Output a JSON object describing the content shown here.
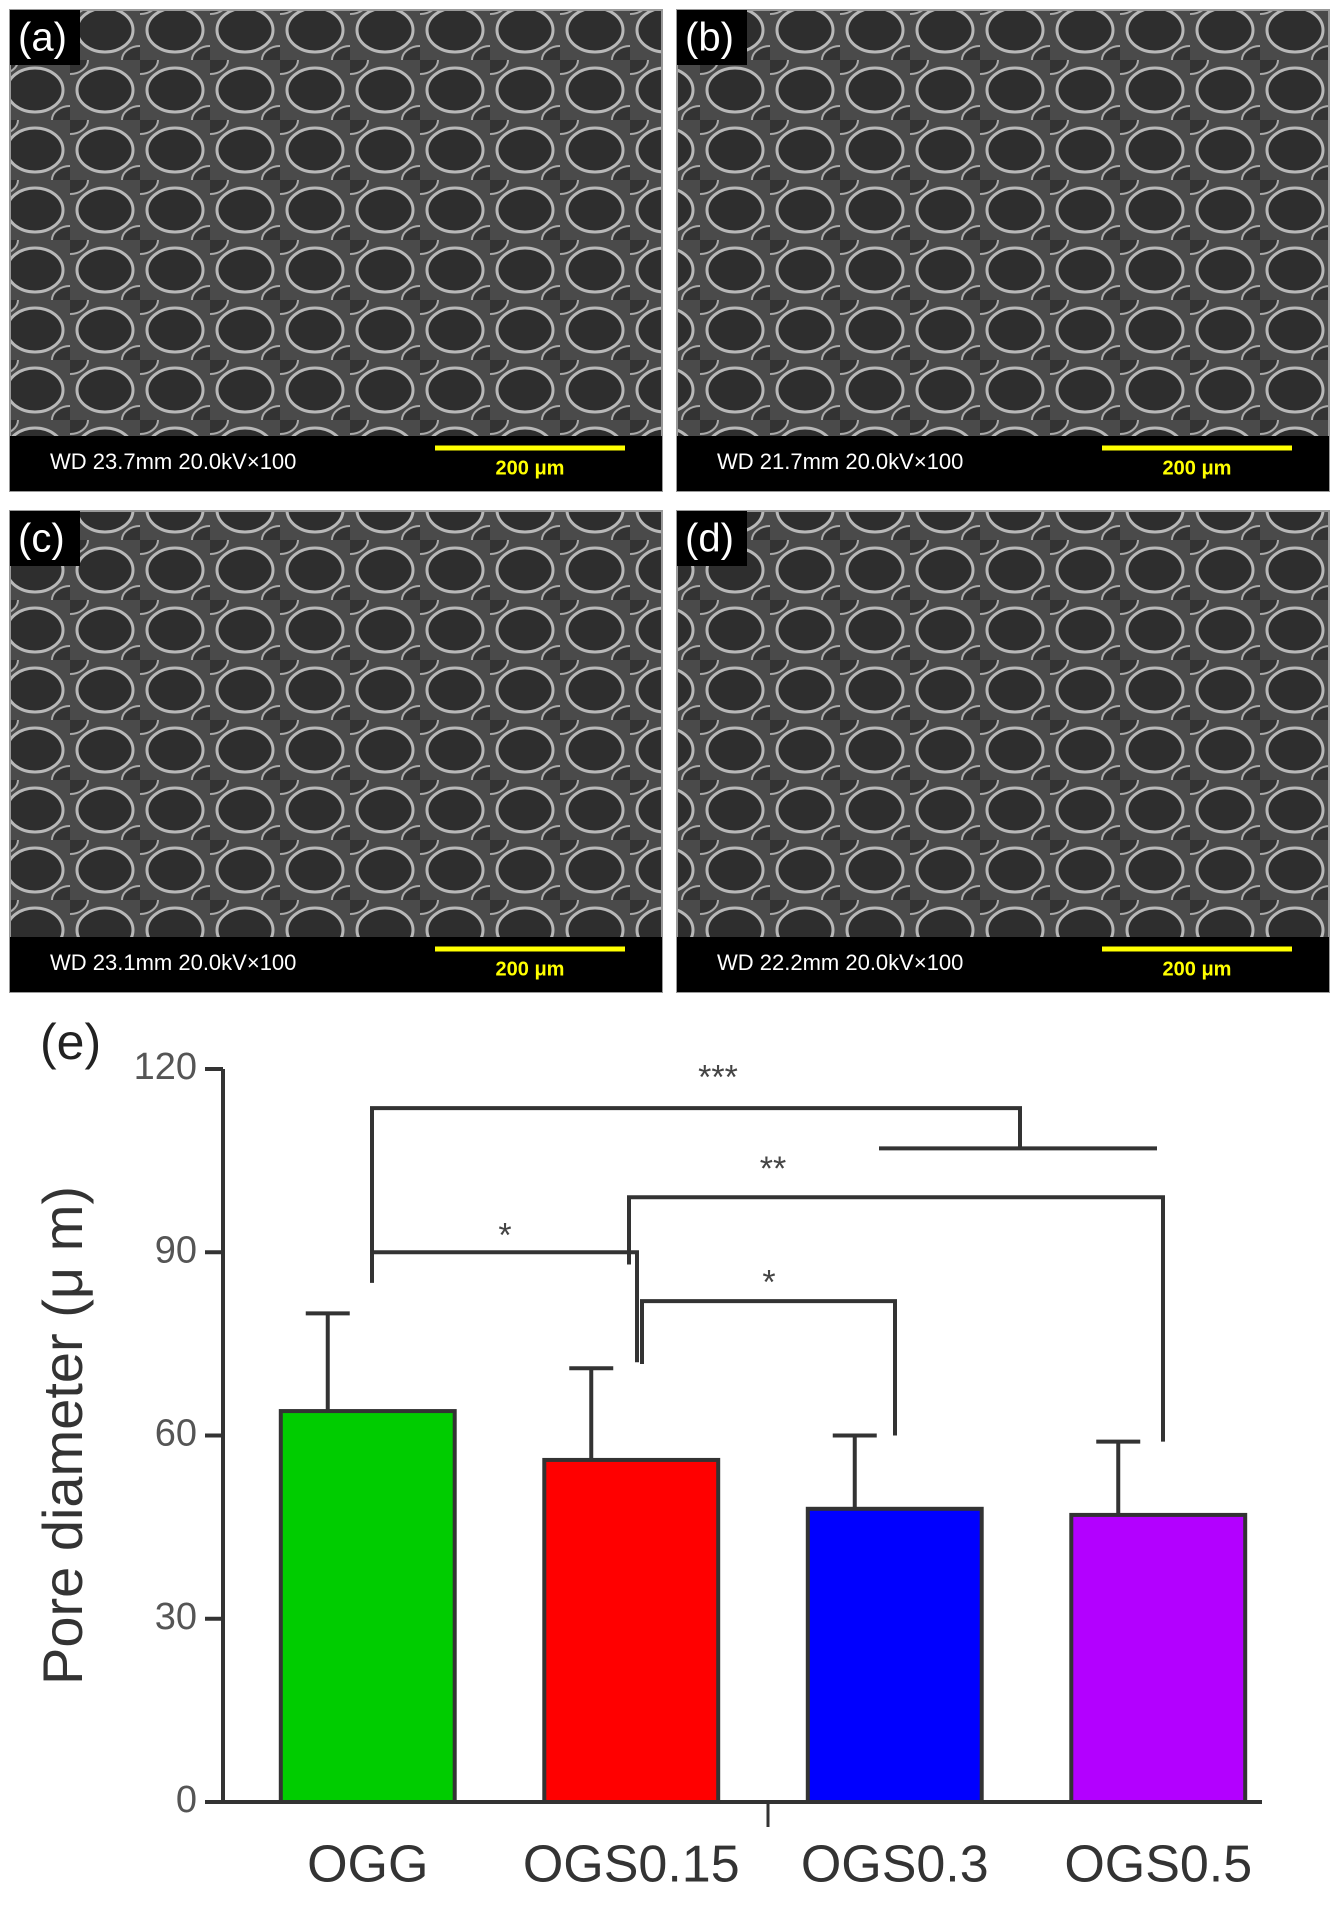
{
  "panels": [
    {
      "label": "(a)",
      "info": "WD 23.7mm 20.0kV×100",
      "scale": "200 μm"
    },
    {
      "label": "(b)",
      "info": "WD 21.7mm 20.0kV×100",
      "scale": "200 μm"
    },
    {
      "label": "(c)",
      "info": "WD 23.1mm 20.0kV×100",
      "scale": "200 μm"
    },
    {
      "label": "(d)",
      "info": "WD 22.2mm 20.0kV×100",
      "scale": "200 μm"
    }
  ],
  "chart_data": {
    "type": "bar",
    "panel_label": "(e)",
    "y_label": "Pore diameter (μ m)",
    "categories": [
      "OGG",
      "OGS0.15",
      "OGS0.3",
      "OGS0.5"
    ],
    "values": [
      64,
      56,
      48,
      47
    ],
    "errors": [
      16,
      15,
      12,
      12
    ],
    "colors": [
      "#00cc00",
      "#ff0000",
      "#0000ff",
      "#b300ff"
    ],
    "ylim": [
      0,
      120
    ],
    "yticks": [
      0,
      30,
      60,
      90,
      120
    ],
    "annotations": [
      "***",
      "**",
      "*",
      "*"
    ]
  }
}
